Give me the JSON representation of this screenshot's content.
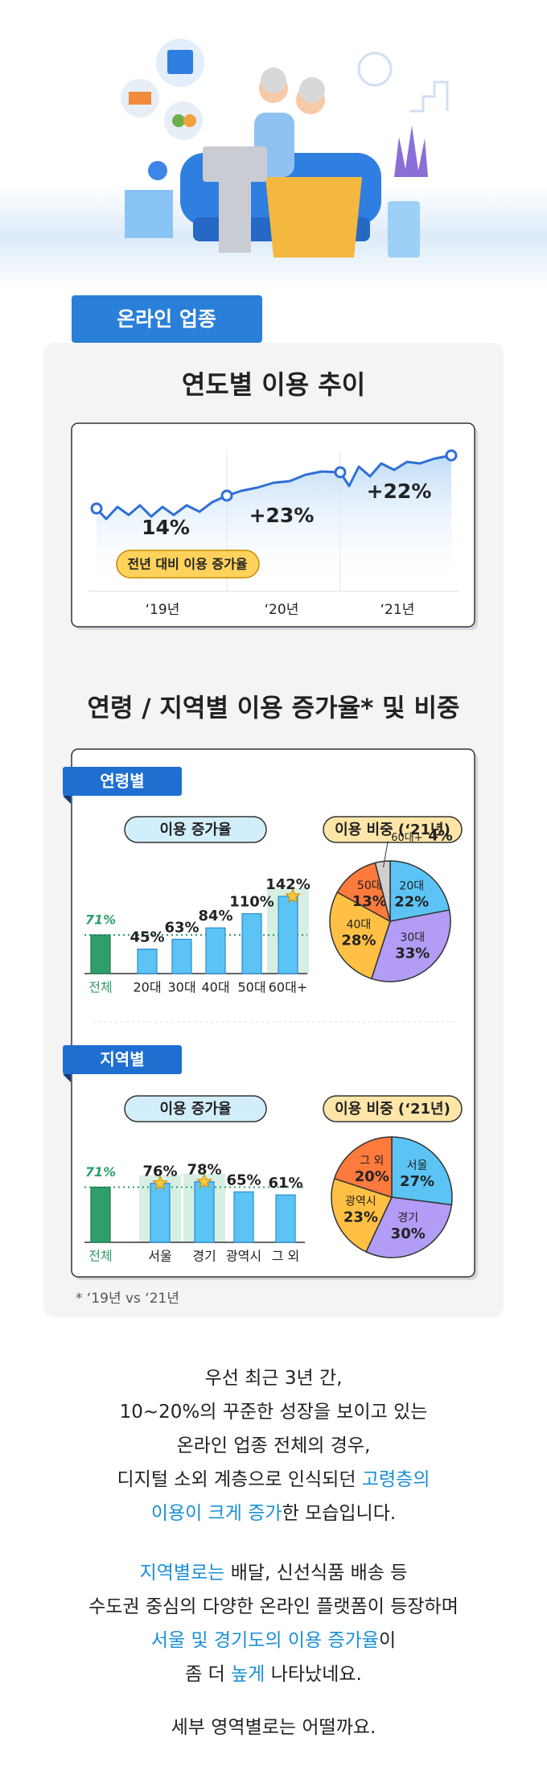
{
  "section_tab": "온라인 업종",
  "section_title": "연령 / 지역별 이용 증가율* 및 비중",
  "footnote": "* ‘19년 vs ‘21년",
  "chart_data": [
    {
      "type": "line",
      "title": "연도별 이용 추이",
      "categories": [
        "‘19년",
        "‘20년",
        "‘21년"
      ],
      "annotations": [
        "14%",
        "+23%",
        "+22%"
      ],
      "legend_label": "전년 대비 이용 증가율",
      "color": "#2f6fd6"
    },
    {
      "type": "bar",
      "group": "연령별",
      "title": "이용 증가율",
      "categories": [
        "전체",
        "20대",
        "30대",
        "40대",
        "50대",
        "60대+"
      ],
      "values": [
        71,
        45,
        63,
        84,
        110,
        142
      ],
      "value_labels": [
        "71%",
        "45%",
        "63%",
        "84%",
        "110%",
        "142%"
      ],
      "colors": [
        "#2e9e6b",
        "#5bc4f5",
        "#5bc4f5",
        "#5bc4f5",
        "#5bc4f5",
        "#5bc4f5"
      ]
    },
    {
      "type": "pie",
      "title": "이용 비중 (‘21년)",
      "categories": [
        "20대",
        "30대",
        "40대",
        "50대",
        "60대+"
      ],
      "values": [
        22,
        33,
        28,
        13,
        4
      ],
      "value_labels": [
        "22%",
        "33%",
        "28%",
        "13%",
        "4%"
      ],
      "colors": [
        "#5bc4f5",
        "#b39cf5",
        "#ffc043",
        "#ff7a3d",
        "#cfcfcf"
      ]
    },
    {
      "type": "bar",
      "group": "지역별",
      "title": "이용 증가율",
      "categories": [
        "전체",
        "서울",
        "경기",
        "광역시",
        "그 외"
      ],
      "values": [
        71,
        76,
        78,
        65,
        61
      ],
      "value_labels": [
        "71%",
        "76%",
        "78%",
        "65%",
        "61%"
      ],
      "colors": [
        "#2e9e6b",
        "#5bc4f5",
        "#5bc4f5",
        "#5bc4f5",
        "#5bc4f5"
      ]
    },
    {
      "type": "pie",
      "title": "이용 비중 (‘21년)",
      "categories": [
        "서울",
        "경기",
        "광역시",
        "그 외"
      ],
      "values": [
        27,
        30,
        23,
        20
      ],
      "value_labels": [
        "27%",
        "30%",
        "23%",
        "20%"
      ],
      "colors": [
        "#5bc4f5",
        "#b39cf5",
        "#ffc043",
        "#ff7a3d"
      ]
    }
  ],
  "body": [
    [
      [
        {
          "text": "우선 최근 3년 간,"
        }
      ],
      [
        {
          "text": "10~20%의 꾸준한 성장을 보이고 있는"
        }
      ],
      [
        {
          "text": "온라인 업종 전체의 경우,"
        }
      ],
      [
        {
          "text": "디지털 소외 계층으로 인식되던 "
        },
        {
          "text": "고령층의",
          "color": "#1a8fd6"
        }
      ],
      [
        {
          "text": "이용이 크게 증가",
          "color": "#1a8fd6"
        },
        {
          "text": "한 모습입니다."
        }
      ]
    ],
    [
      [
        {
          "text": "지역별로는",
          "color": "#1a8fd6"
        },
        {
          "text": " 배달, 신선식품 배송 등"
        }
      ],
      [
        {
          "text": "수도권 중심의 다양한 온라인 플랫폼이 등장하며"
        }
      ],
      [
        {
          "text": "서울 및 경기도의 이용 증가율",
          "color": "#1a8fd6"
        },
        {
          "text": "이"
        }
      ],
      [
        {
          "text": "좀 더 "
        },
        {
          "text": "높게",
          "color": "#1a8fd6"
        },
        {
          "text": " 나타났네요."
        }
      ]
    ],
    [
      [
        {
          "text": "세부 영역별로는 어떨까요."
        }
      ]
    ]
  ]
}
